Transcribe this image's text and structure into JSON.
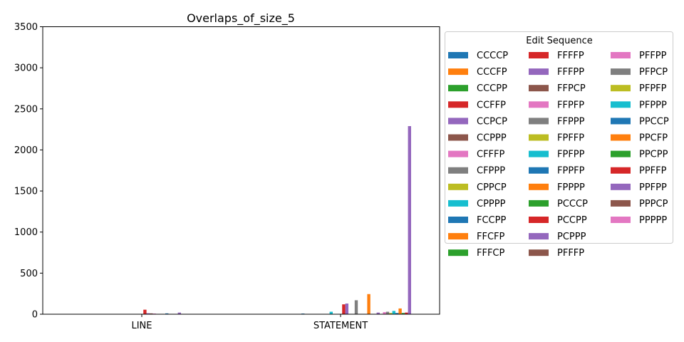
{
  "chart_data": {
    "type": "bar",
    "title": "Overlaps_of_size_5",
    "xlabel": "",
    "ylabel": "",
    "ylim": [
      0,
      3500
    ],
    "yticks": [
      0,
      500,
      1000,
      1500,
      2000,
      2500,
      3000,
      3500
    ],
    "grid": false,
    "categories": [
      "LINE",
      "STATEMENT"
    ],
    "legend": {
      "title": "Edit Sequence",
      "placement": "outside-right",
      "columns": 3
    },
    "palette": [
      "#1f77b4",
      "#ff7f0e",
      "#2ca02c",
      "#d62728",
      "#9467bd",
      "#8c564b",
      "#e377c2",
      "#7f7f7f",
      "#bcbd22",
      "#17becf"
    ],
    "series": [
      {
        "name": "CCCCP",
        "values": [
          0,
          0
        ]
      },
      {
        "name": "CCCFP",
        "values": [
          0,
          0
        ]
      },
      {
        "name": "CCCPP",
        "values": [
          0,
          0
        ]
      },
      {
        "name": "CCFFP",
        "values": [
          0,
          0
        ]
      },
      {
        "name": "CCPCP",
        "values": [
          0,
          0
        ]
      },
      {
        "name": "CCPPP",
        "values": [
          0,
          0
        ]
      },
      {
        "name": "CFFFP",
        "values": [
          0,
          0
        ]
      },
      {
        "name": "CFPPP",
        "values": [
          0,
          0
        ]
      },
      {
        "name": "CPPCP",
        "values": [
          0,
          0
        ]
      },
      {
        "name": "CPPPP",
        "values": [
          0,
          0
        ]
      },
      {
        "name": "FCCPP",
        "values": [
          0,
          8
        ]
      },
      {
        "name": "FFCFP",
        "values": [
          0,
          0
        ]
      },
      {
        "name": "FFFCP",
        "values": [
          0,
          0
        ]
      },
      {
        "name": "FFFFP",
        "values": [
          0,
          0
        ]
      },
      {
        "name": "FFFPP",
        "values": [
          0,
          0
        ]
      },
      {
        "name": "FFPCP",
        "values": [
          0,
          0
        ]
      },
      {
        "name": "FFPFP",
        "values": [
          0,
          0
        ]
      },
      {
        "name": "FFPPP",
        "values": [
          0,
          0
        ]
      },
      {
        "name": "FPFFP",
        "values": [
          0,
          0
        ]
      },
      {
        "name": "FPFPP",
        "values": [
          0,
          30
        ]
      },
      {
        "name": "FPPFP",
        "values": [
          0,
          0
        ]
      },
      {
        "name": "FPPPP",
        "values": [
          0,
          0
        ]
      },
      {
        "name": "PCCCP",
        "values": [
          0,
          0
        ]
      },
      {
        "name": "PCCPP",
        "values": [
          55,
          120
        ]
      },
      {
        "name": "PCPPP",
        "values": [
          12,
          130
        ]
      },
      {
        "name": "PFFFP",
        "values": [
          0,
          0
        ]
      },
      {
        "name": "PFFPP",
        "values": [
          0,
          0
        ]
      },
      {
        "name": "PFPCP",
        "values": [
          0,
          170
        ]
      },
      {
        "name": "PFPFP",
        "values": [
          0,
          0
        ]
      },
      {
        "name": "PFPPP",
        "values": [
          0,
          0
        ]
      },
      {
        "name": "PPCCP",
        "values": [
          0,
          0
        ]
      },
      {
        "name": "PPCFP",
        "values": [
          0,
          245
        ]
      },
      {
        "name": "PPCPP",
        "values": [
          0,
          0
        ]
      },
      {
        "name": "PPFFP",
        "values": [
          0,
          0
        ]
      },
      {
        "name": "PPFPP",
        "values": [
          0,
          0
        ]
      },
      {
        "name": "PPPCP",
        "values": [
          0,
          0
        ]
      },
      {
        "name": "PPPPP",
        "values": [
          0,
          0
        ]
      }
    ],
    "hidden_bars": [
      {
        "category": "LINE",
        "index": 25,
        "value": 10
      },
      {
        "category": "LINE",
        "index": 26,
        "value": 8
      },
      {
        "category": "LINE",
        "index": 30,
        "value": 10
      },
      {
        "category": "LINE",
        "index": 34,
        "value": 20
      },
      {
        "category": "STATEMENT",
        "index": 34,
        "value": 20
      }
    ],
    "statement_tail": [
      {
        "index": 36,
        "value": 25
      },
      {
        "index": 37,
        "value": 30
      },
      {
        "index": 38,
        "value": 15
      },
      {
        "index": 39,
        "value": 40
      },
      {
        "index": 40,
        "value": 15
      },
      {
        "index": 41,
        "value": 70
      },
      {
        "index": 42,
        "value": 15
      },
      {
        "index": 43,
        "value": 20
      },
      {
        "index": 44,
        "value": 2290
      }
    ]
  }
}
